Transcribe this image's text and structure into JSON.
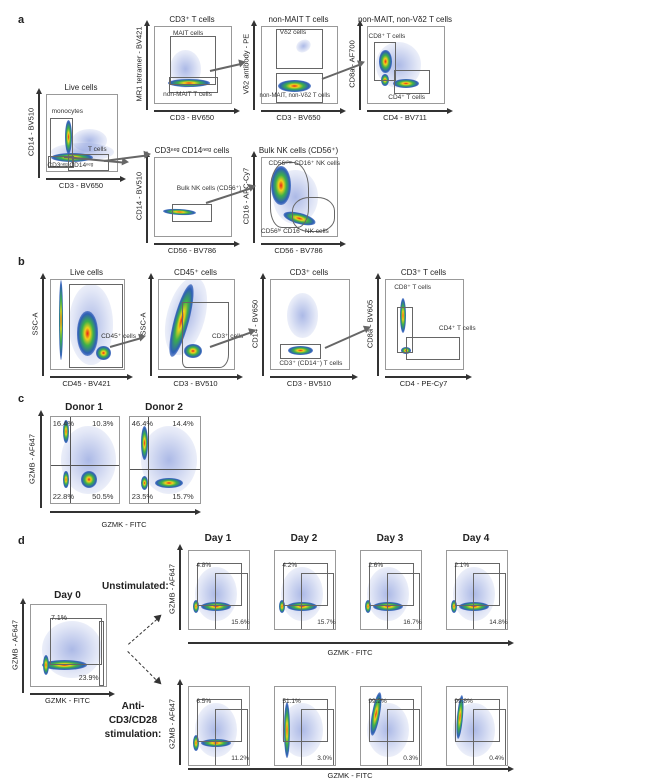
{
  "panel_a": {
    "letter": "a",
    "plots": [
      {
        "title": "Live cells",
        "ylabel": "CD14 - BV510",
        "xlabel": "CD3 - BV650",
        "gates": [
          "monocytes",
          "T cells",
          "CD3ⁿᵉᵍ CD14ⁿᵉᵍ"
        ]
      },
      {
        "title": "CD3⁺ T cells",
        "ylabel": "MR1 tetramer - BV421",
        "xlabel": "CD3 - BV650",
        "gates": [
          "MAIT cells",
          "non-MAIT T cells"
        ]
      },
      {
        "title": "non-MAIT T cells",
        "ylabel": "Vδ2 antibody - PE",
        "xlabel": "CD3 - BV650",
        "gates": [
          "Vδ2 cells",
          "non-MAIT, non-Vδ2 T cells"
        ]
      },
      {
        "title": "non-MAIT, non-Vδ2 T cells",
        "ylabel": "CD8a - AF700",
        "xlabel": "CD4 - BV711",
        "gates": [
          "CD8⁺ T cells",
          "CD4⁺ T cells"
        ]
      },
      {
        "title": "CD3ⁿᵉᵍ CD14ⁿᵉᵍ cells",
        "ylabel": "CD14 - BV510",
        "xlabel": "CD56 - BV786",
        "gates": [
          "Bulk NK cells (CD56⁺)"
        ]
      },
      {
        "title": "Bulk NK cells (CD56⁺)",
        "ylabel": "CD16 - APC-Cy7",
        "xlabel": "CD56 - BV786",
        "gates": [
          "CD56ᵈⁱᵐ CD16⁺ NK cells",
          "CD56ʰⁱ CD16⁻ NK cells"
        ]
      }
    ]
  },
  "panel_b": {
    "letter": "b",
    "plots": [
      {
        "title": "Live cells",
        "ylabel": "SSC-A",
        "xlabel": "CD45 - BV421",
        "gates": [
          "CD45⁺ cells"
        ]
      },
      {
        "title": "CD45⁺ cells",
        "ylabel": "SSC-A",
        "xlabel": "CD3 - BV510",
        "gates": [
          "CD3⁺ cells"
        ]
      },
      {
        "title": "CD3⁺ cells",
        "ylabel": "CD14 - BV650",
        "xlabel": "CD3 - BV510",
        "gates": [
          "CD3⁺ (CD14⁻) T cells"
        ]
      },
      {
        "title": "CD3⁺ T cells",
        "ylabel": "CD8a - BV605",
        "xlabel": "CD4 - PE-Cy7",
        "gates": [
          "CD8⁺ T cells",
          "CD4⁺ T cells"
        ]
      }
    ]
  },
  "panel_c": {
    "letter": "c",
    "ylabel": "GZMB - AF647",
    "xlabel": "GZMK - FITC",
    "plots": [
      {
        "title": "Donor 1",
        "quadrants": [
          "16.4%",
          "10.3%",
          "22.8%",
          "50.5%"
        ]
      },
      {
        "title": "Donor 2",
        "quadrants": [
          "46.4%",
          "14.4%",
          "23.5%",
          "15.7%"
        ]
      }
    ]
  },
  "panel_d": {
    "letter": "d",
    "ylabel": "GZMB - AF647",
    "xlabel": "GZMK - FITC",
    "day0": {
      "title": "Day 0",
      "gzmb": "7.1%",
      "gzmk": "23.9%"
    },
    "row_labels": {
      "unstimulated": "Unstimulated:",
      "stimulated": "Anti-CD3/CD28 stimulation:"
    },
    "days": [
      "Day 1",
      "Day 2",
      "Day 3",
      "Day 4"
    ],
    "unstimulated": [
      {
        "gzmb": "4.8%",
        "gzmk": "15.6%"
      },
      {
        "gzmb": "4.2%",
        "gzmk": "15.7%"
      },
      {
        "gzmb": "2.6%",
        "gzmk": "16.7%"
      },
      {
        "gzmb": "2.1%",
        "gzmk": "14.8%"
      }
    ],
    "stimulated": [
      {
        "gzmb": "6.5%",
        "gzmk": "11.2%"
      },
      {
        "gzmb": "51.1%",
        "gzmk": "3.0%"
      },
      {
        "gzmb": "99.2%",
        "gzmk": "0.3%"
      },
      {
        "gzmb": "99.8%",
        "gzmk": "0.4%"
      }
    ]
  }
}
